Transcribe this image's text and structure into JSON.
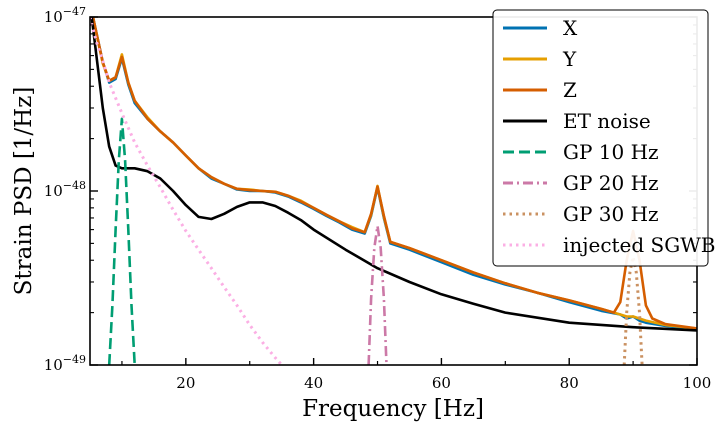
{
  "chart_data": {
    "type": "line",
    "title": "",
    "xlabel": "Frequency [Hz]",
    "ylabel": "Strain PSD [1/Hz]",
    "xlim": [
      5,
      100
    ],
    "ylim": [
      1e-49,
      1e-47
    ],
    "yscale": "log",
    "grid": false,
    "legend_position": "top-right",
    "x_ticks": [
      20,
      40,
      60,
      80,
      100
    ],
    "x_tick_labels": [
      "20",
      "40",
      "60",
      "80",
      "100"
    ],
    "y_ticks": [
      1e-49,
      1e-48,
      1e-47
    ],
    "y_tick_labels": [
      "10−49",
      "10−48",
      "10−47"
    ],
    "series": [
      {
        "name": "X",
        "color": "#0072B2",
        "style": "solid",
        "x": [
          5,
          7,
          8,
          9,
          10,
          11,
          12,
          14,
          16,
          18,
          20,
          22,
          24,
          26,
          28,
          30,
          32,
          34,
          36,
          38,
          40,
          42,
          44,
          46,
          48,
          49,
          50,
          51,
          52,
          55,
          60,
          65,
          70,
          75,
          80,
          85,
          88,
          89,
          90,
          91,
          92,
          95,
          100
        ],
        "y": [
          1.2e-47,
          5.5e-48,
          4.2e-48,
          4.4e-48,
          5.8e-48,
          4.1e-48,
          3.2e-48,
          2.6e-48,
          2.2e-48,
          1.9e-48,
          1.6e-48,
          1.35e-48,
          1.18e-48,
          1.1e-48,
          1.02e-48,
          1e-48,
          1e-48,
          9.8e-49,
          9.3e-49,
          8.6e-49,
          7.9e-49,
          7.2e-49,
          6.6e-49,
          6e-49,
          5.7e-49,
          7.2e-49,
          1.05e-48,
          7e-49,
          5e-49,
          4.6e-49,
          3.9e-49,
          3.3e-49,
          2.9e-49,
          2.6e-49,
          2.3e-49,
          2.05e-49,
          1.95e-49,
          1.85e-49,
          1.9e-49,
          1.8e-49,
          1.75e-49,
          1.68e-49,
          1.6e-49
        ]
      },
      {
        "name": "Y",
        "color": "#E69F00",
        "style": "solid",
        "x": [
          5,
          7,
          8,
          9,
          10,
          11,
          12,
          14,
          16,
          18,
          20,
          22,
          24,
          26,
          28,
          30,
          32,
          34,
          36,
          38,
          40,
          42,
          44,
          46,
          48,
          49,
          50,
          51,
          52,
          55,
          60,
          65,
          70,
          75,
          80,
          85,
          88,
          89,
          90,
          91,
          92,
          95,
          100
        ],
        "y": [
          1.2e-47,
          5.4e-48,
          4.3e-48,
          4.5e-48,
          6.1e-48,
          4.2e-48,
          3.3e-48,
          2.65e-48,
          2.2e-48,
          1.9e-48,
          1.6e-48,
          1.35e-48,
          1.2e-48,
          1.1e-48,
          1.03e-48,
          1.02e-48,
          1e-48,
          9.9e-49,
          9.4e-49,
          8.8e-49,
          8e-49,
          7.3e-49,
          6.7e-49,
          6.2e-49,
          5.8e-49,
          7.3e-49,
          1.07e-48,
          7.1e-49,
          5.1e-49,
          4.7e-49,
          4e-49,
          3.4e-49,
          2.95e-49,
          2.6e-49,
          2.35e-49,
          2.1e-49,
          1.95e-49,
          1.9e-49,
          1.9e-49,
          1.85e-49,
          1.8e-49,
          1.7e-49,
          1.62e-49
        ]
      },
      {
        "name": "Z",
        "color": "#D55E00",
        "style": "solid",
        "x": [
          5,
          7,
          8,
          9,
          10,
          11,
          12,
          14,
          16,
          18,
          20,
          22,
          24,
          26,
          28,
          30,
          32,
          34,
          36,
          38,
          40,
          42,
          44,
          46,
          48,
          49,
          50,
          51,
          52,
          55,
          60,
          65,
          70,
          75,
          80,
          85,
          87,
          88,
          89,
          90,
          91,
          92,
          93,
          95,
          100
        ],
        "y": [
          1.2e-47,
          5.5e-48,
          4.3e-48,
          4.5e-48,
          5.9e-48,
          4.2e-48,
          3.3e-48,
          2.6e-48,
          2.2e-48,
          1.9e-48,
          1.6e-48,
          1.35e-48,
          1.2e-48,
          1.1e-48,
          1.03e-48,
          1.01e-48,
          1e-48,
          9.9e-49,
          9.4e-49,
          8.7e-49,
          8e-49,
          7.3e-49,
          6.7e-49,
          6.1e-49,
          5.8e-49,
          7.4e-49,
          1.06e-48,
          7.2e-49,
          5.1e-49,
          4.7e-49,
          4e-49,
          3.4e-49,
          2.95e-49,
          2.6e-49,
          2.35e-49,
          2.1e-49,
          2e-49,
          2.3e-49,
          4e-49,
          5.9e-49,
          4e-49,
          2.2e-49,
          1.85e-49,
          1.72e-49,
          1.62e-49
        ]
      },
      {
        "name": "ET noise",
        "color": "#000000",
        "style": "solid",
        "x": [
          5,
          6,
          7,
          8,
          9,
          10,
          12,
          14,
          16,
          18,
          20,
          22,
          24,
          26,
          28,
          30,
          32,
          34,
          36,
          38,
          40,
          45,
          50,
          55,
          60,
          65,
          70,
          80,
          90,
          100
        ],
        "y": [
          1.2e-47,
          6e-48,
          3e-48,
          1.8e-48,
          1.4e-48,
          1.35e-48,
          1.35e-48,
          1.3e-48,
          1.18e-48,
          1e-48,
          8.3e-49,
          7.1e-49,
          6.9e-49,
          7.4e-49,
          8.1e-49,
          8.6e-49,
          8.6e-49,
          8.2e-49,
          7.5e-49,
          6.8e-49,
          6e-49,
          4.6e-49,
          3.6e-49,
          3e-49,
          2.55e-49,
          2.25e-49,
          2e-49,
          1.75e-49,
          1.65e-49,
          1.58e-49
        ]
      },
      {
        "name": "GP 10 Hz",
        "color": "#009E73",
        "style": "dashed",
        "x": [
          8.0,
          8.5,
          9.0,
          9.5,
          10.0,
          10.5,
          11.0,
          11.5,
          12.0
        ],
        "y": [
          1e-49,
          2.2e-49,
          6e-49,
          1.5e-48,
          2.6e-48,
          1.5e-48,
          6e-49,
          2.2e-49,
          1e-49
        ]
      },
      {
        "name": "GP 20 Hz",
        "color": "#CC79A7",
        "style": "dashdot",
        "x": [
          48.6,
          49.0,
          49.5,
          50.0,
          50.5,
          51.0,
          51.4
        ],
        "y": [
          1e-49,
          2.4e-49,
          4.7e-49,
          6.3e-49,
          4.7e-49,
          2.4e-49,
          1e-49
        ]
      },
      {
        "name": "GP 30 Hz",
        "color": "#CA9161",
        "style": "dotted",
        "x": [
          88.6,
          89.0,
          89.5,
          90.0,
          90.5,
          91.0,
          91.4
        ],
        "y": [
          1e-49,
          2e-49,
          3.4e-49,
          4.2e-49,
          3.4e-49,
          2e-49,
          1e-49
        ]
      },
      {
        "name": "injected SGWB",
        "color": "#FBAFE4",
        "style": "dotted",
        "x": [
          5,
          6,
          7,
          8,
          10,
          12,
          14,
          16,
          18,
          20,
          22,
          24,
          26,
          28,
          30,
          32,
          34,
          35
        ],
        "y": [
          1e-47,
          7.2e-48,
          5.6e-48,
          4.2e-48,
          2.8e-48,
          1.9e-48,
          1.4e-48,
          1.05e-48,
          7.8e-49,
          5.9e-49,
          4.6e-49,
          3.6e-49,
          2.8e-49,
          2.2e-49,
          1.7e-49,
          1.35e-49,
          1.1e-49,
          1e-49
        ]
      }
    ]
  }
}
